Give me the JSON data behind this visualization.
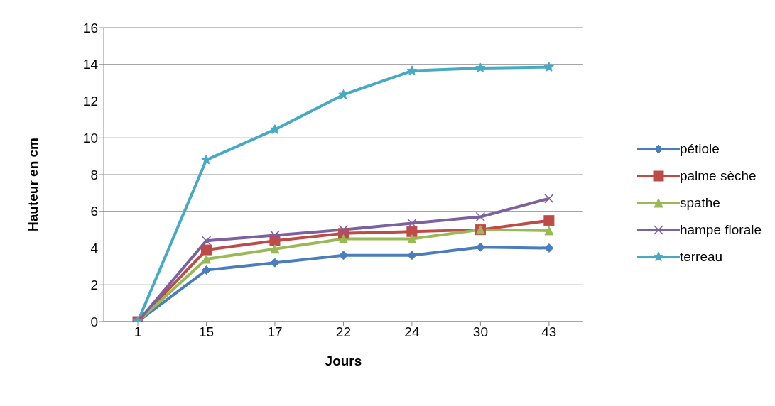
{
  "chart_data": {
    "type": "line",
    "xlabel": "Jours",
    "ylabel": "Hauteur en cm",
    "categories": [
      "1",
      "15",
      "17",
      "22",
      "24",
      "30",
      "43"
    ],
    "ylim": [
      0,
      16
    ],
    "yticks": [
      0,
      2,
      4,
      6,
      8,
      10,
      12,
      14,
      16
    ],
    "grid": "y",
    "legend": "right",
    "series": [
      {
        "name": "pétiole",
        "color": "#4a7ebb",
        "marker": "diamond",
        "values": [
          0,
          2.8,
          3.2,
          3.6,
          3.6,
          4.05,
          4.0
        ]
      },
      {
        "name": "palme sèche",
        "color": "#be4b48",
        "marker": "square",
        "values": [
          0,
          3.9,
          4.4,
          4.8,
          4.9,
          5.0,
          5.5
        ]
      },
      {
        "name": "spathe",
        "color": "#98b954",
        "marker": "triangle",
        "values": [
          0,
          3.4,
          3.95,
          4.5,
          4.5,
          5.0,
          4.95
        ]
      },
      {
        "name": "hampe florale",
        "color": "#7d60a0",
        "marker": "cross",
        "values": [
          0,
          4.4,
          4.7,
          5.0,
          5.35,
          5.7,
          6.7
        ]
      },
      {
        "name": "terreau",
        "color": "#46aac5",
        "marker": "star",
        "values": [
          0,
          8.8,
          10.45,
          12.35,
          13.65,
          13.8,
          13.85
        ]
      }
    ]
  }
}
